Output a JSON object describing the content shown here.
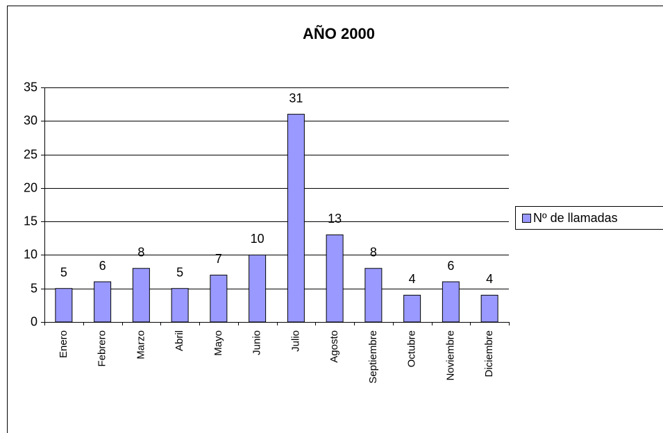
{
  "chart_data": {
    "type": "bar",
    "title": "AÑO 2000",
    "categories": [
      "Enero",
      "Febrero",
      "Marzo",
      "Abril",
      "Mayo",
      "Junio",
      "Julio",
      "Agosto",
      "Septiembre",
      "Octubre",
      "Noviembre",
      "Diciembre"
    ],
    "series": [
      {
        "name": "Nº de llamadas",
        "color": "#9999ff",
        "values": [
          5,
          6,
          8,
          5,
          7,
          10,
          31,
          13,
          8,
          4,
          6,
          4
        ]
      }
    ],
    "ylim": [
      0,
      35
    ],
    "yticks": [
      0,
      5,
      10,
      15,
      20,
      25,
      30,
      35
    ],
    "grid": true,
    "legend": "right"
  }
}
